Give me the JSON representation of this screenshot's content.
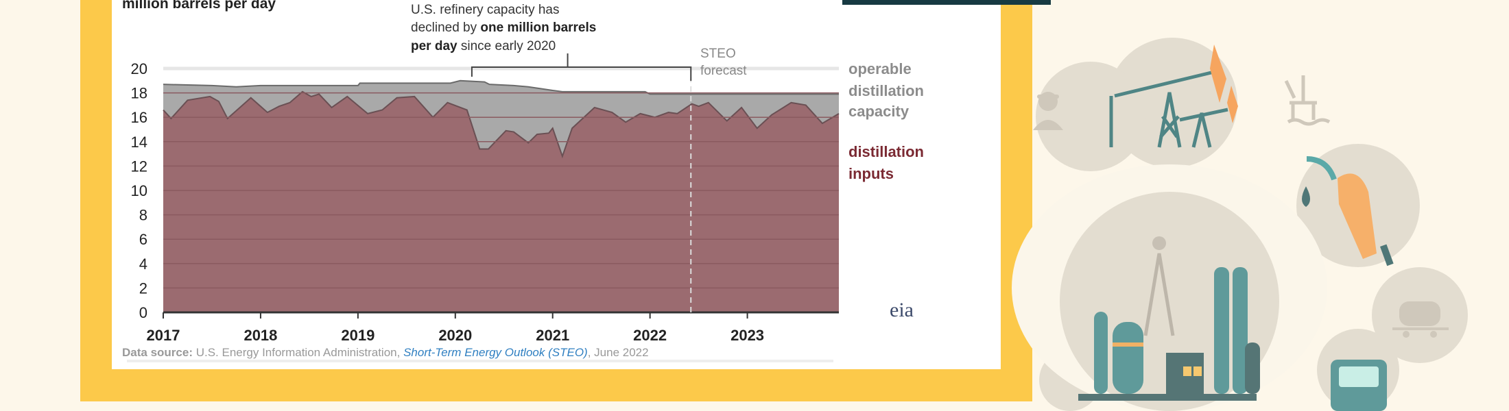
{
  "chart_data": {
    "type": "area",
    "ylabel": "million barrels per day",
    "ylim": [
      0,
      20
    ],
    "yticks": [
      0,
      2,
      4,
      6,
      8,
      10,
      12,
      14,
      16,
      18,
      20
    ],
    "xticks": [
      "2017",
      "2018",
      "2019",
      "2020",
      "2021",
      "2022",
      "2023"
    ],
    "xlim": [
      2017,
      2023.94
    ],
    "forecast_start": 2022.42,
    "annotation": {
      "line1": "U.S. refinery capacity has",
      "line2_a": "declined by ",
      "line2_b": "one million barrels",
      "line3_a": "per day",
      "line3_b": " since early 2020",
      "bracket_from": 2020.17,
      "bracket_to": 2022.42
    },
    "forecast_label": [
      "STEO",
      "forecast"
    ],
    "series": [
      {
        "name": "operable distillation capacity",
        "label_lines": [
          "operable",
          "distillation",
          "capacity"
        ],
        "color": "#a9a9a9",
        "points": [
          [
            2017,
            18.7
          ],
          [
            2017.5,
            18.6
          ],
          [
            2017.75,
            18.5
          ],
          [
            2018,
            18.6
          ],
          [
            2019,
            18.6
          ],
          [
            2019.02,
            18.8
          ],
          [
            2019.95,
            18.8
          ],
          [
            2020.05,
            19.0
          ],
          [
            2020.3,
            18.9
          ],
          [
            2020.35,
            18.7
          ],
          [
            2020.6,
            18.6
          ],
          [
            2020.75,
            18.5
          ],
          [
            2021.0,
            18.2
          ],
          [
            2021.1,
            18.1
          ],
          [
            2021.95,
            18.1
          ],
          [
            2022.0,
            17.9
          ],
          [
            2023.94,
            17.9
          ]
        ]
      },
      {
        "name": "distillation inputs",
        "label_lines": [
          "distillation",
          "inputs"
        ],
        "color": "#9b6b70",
        "points": [
          [
            2017,
            16.6
          ],
          [
            2017.08,
            15.9
          ],
          [
            2017.25,
            17.4
          ],
          [
            2017.48,
            17.7
          ],
          [
            2017.57,
            17.3
          ],
          [
            2017.66,
            15.9
          ],
          [
            2017.9,
            17.6
          ],
          [
            2018.07,
            16.4
          ],
          [
            2018.19,
            16.9
          ],
          [
            2018.3,
            17.2
          ],
          [
            2018.43,
            18.1
          ],
          [
            2018.52,
            17.7
          ],
          [
            2018.6,
            17.9
          ],
          [
            2018.73,
            16.8
          ],
          [
            2018.89,
            17.7
          ],
          [
            2019.1,
            16.3
          ],
          [
            2019.25,
            16.6
          ],
          [
            2019.4,
            17.6
          ],
          [
            2019.58,
            17.7
          ],
          [
            2019.77,
            16.0
          ],
          [
            2019.92,
            17.2
          ],
          [
            2020.12,
            16.6
          ],
          [
            2020.25,
            13.4
          ],
          [
            2020.34,
            13.4
          ],
          [
            2020.52,
            14.9
          ],
          [
            2020.6,
            14.8
          ],
          [
            2020.75,
            13.9
          ],
          [
            2020.84,
            14.6
          ],
          [
            2020.96,
            14.7
          ],
          [
            2021.0,
            15.1
          ],
          [
            2021.1,
            12.8
          ],
          [
            2021.2,
            15.1
          ],
          [
            2021.43,
            16.8
          ],
          [
            2021.61,
            16.4
          ],
          [
            2021.75,
            15.6
          ],
          [
            2021.9,
            16.3
          ],
          [
            2022.05,
            16.0
          ],
          [
            2022.19,
            16.4
          ],
          [
            2022.28,
            16.3
          ],
          [
            2022.43,
            17.1
          ],
          [
            2022.5,
            16.9
          ],
          [
            2022.6,
            17.2
          ],
          [
            2022.79,
            15.7
          ],
          [
            2022.94,
            16.8
          ],
          [
            2023.1,
            15.1
          ],
          [
            2023.25,
            16.2
          ],
          [
            2023.45,
            17.2
          ],
          [
            2023.6,
            17.0
          ],
          [
            2023.77,
            15.5
          ],
          [
            2023.94,
            16.3
          ]
        ]
      }
    ],
    "source": {
      "label": "Data source:",
      "text": " U.S. Energy Information Administration, ",
      "link": "Short-Term Energy Outlook",
      "link_suffix": " (STEO)",
      "date": ", June 2022"
    },
    "logo": "eia"
  },
  "colors": {
    "frame": "#fcc94a",
    "inputs_label": "#7b2a33",
    "capacity_label": "#8c8c8c"
  }
}
